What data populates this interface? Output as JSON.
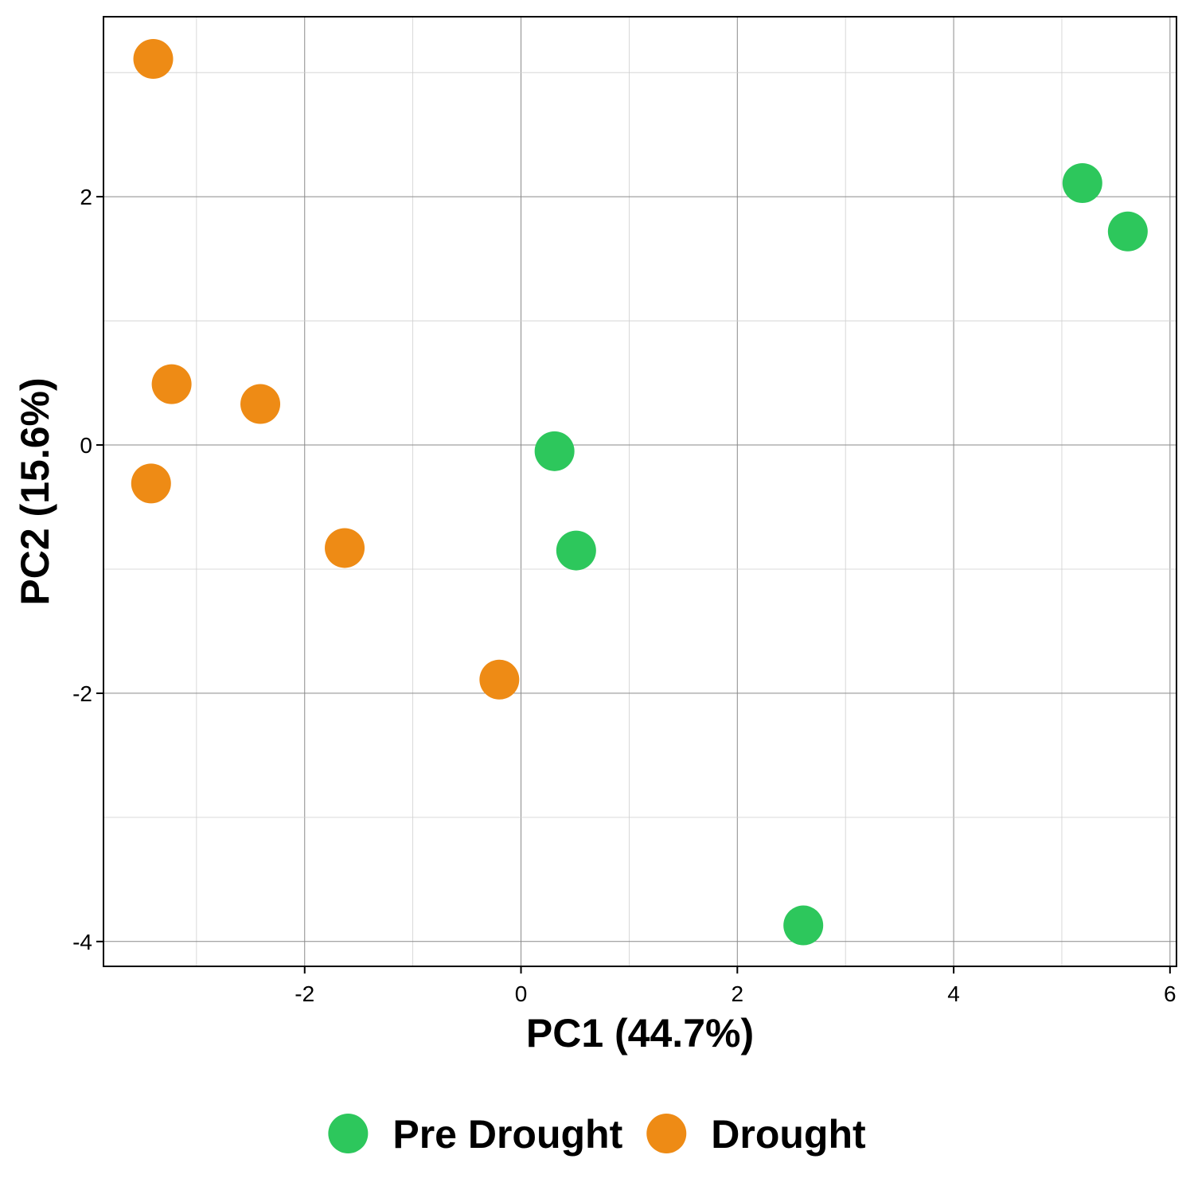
{
  "chart_data": {
    "type": "scatter",
    "xlabel": "PC1 (44.7%)",
    "ylabel": "PC2 (15.6%)",
    "xlim": [
      -3.86,
      6.06
    ],
    "ylim": [
      -4.2,
      3.45
    ],
    "x_ticks": [
      -2,
      0,
      2,
      4,
      6
    ],
    "y_ticks": [
      -4,
      -2,
      0,
      2
    ],
    "x_tick_labels": [
      "-2",
      "0",
      "2",
      "4",
      "6"
    ],
    "y_tick_labels": [
      "-4",
      "-2",
      "0",
      "2"
    ],
    "grid": true,
    "legend_position": "bottom",
    "series": [
      {
        "name": "Pre Drought",
        "color": "#2DC75C",
        "points": [
          {
            "x": 0.31,
            "y": -0.05
          },
          {
            "x": 0.51,
            "y": -0.85
          },
          {
            "x": 2.61,
            "y": -3.87
          },
          {
            "x": 5.19,
            "y": 2.11
          },
          {
            "x": 5.61,
            "y": 1.72
          }
        ]
      },
      {
        "name": "Drought",
        "color": "#EE8B15",
        "points": [
          {
            "x": -3.4,
            "y": 3.11
          },
          {
            "x": -3.23,
            "y": 0.49
          },
          {
            "x": -3.42,
            "y": -0.31
          },
          {
            "x": -2.41,
            "y": 0.33
          },
          {
            "x": -1.63,
            "y": -0.83
          },
          {
            "x": -0.2,
            "y": -1.89
          }
        ]
      }
    ]
  }
}
